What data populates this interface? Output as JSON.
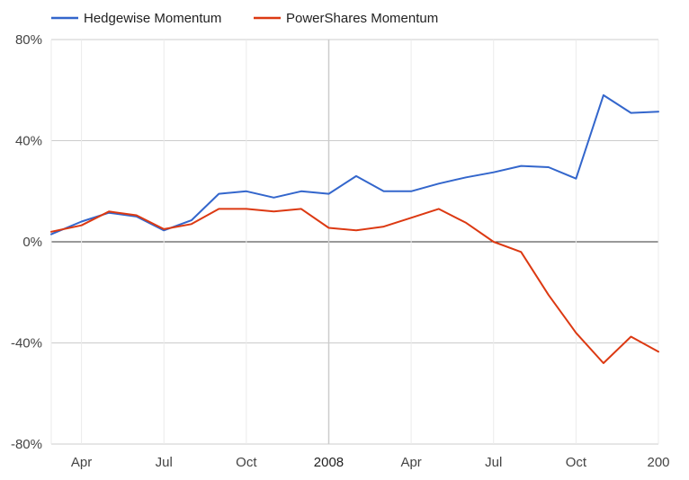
{
  "chart_data": {
    "type": "line",
    "x_ticks": [
      "Apr",
      "Jul",
      "Oct",
      "2008",
      "Apr",
      "Jul",
      "Oct",
      "200"
    ],
    "y_ticks": [
      "80%",
      "40%",
      "0%",
      "-40%",
      "-80%"
    ],
    "y_tick_values": [
      80,
      40,
      0,
      -40,
      -80
    ],
    "ylim": [
      -80,
      80
    ],
    "x_tick_positions": [
      2,
      5,
      8,
      11,
      14,
      17,
      20,
      23
    ],
    "xlim": [
      0.9,
      23
    ],
    "legend_position": "top-left",
    "grid": true,
    "series": [
      {
        "name": "Hedgewise Momentum",
        "color": "#3366cc",
        "x": [
          0.9,
          2,
          3,
          4,
          5,
          6,
          7,
          8,
          9,
          10,
          11,
          12,
          13,
          14,
          15,
          16,
          17,
          18,
          19,
          20,
          21,
          22,
          23
        ],
        "values": [
          3,
          8,
          11.5,
          10,
          4.5,
          8.5,
          19,
          20,
          17.5,
          20,
          19,
          26,
          20,
          20,
          23,
          25.5,
          27.5,
          30,
          29.5,
          25,
          58,
          51,
          51.5
        ]
      },
      {
        "name": "PowerShares Momentum",
        "color": "#dc3912",
        "x": [
          0.9,
          2,
          3,
          4,
          5,
          6,
          7,
          8,
          9,
          10,
          11,
          12,
          13,
          14,
          15,
          16,
          17,
          18,
          19,
          20,
          21,
          22,
          23
        ],
        "values": [
          4,
          6.5,
          12,
          10.5,
          5,
          7,
          13,
          13,
          12,
          13,
          5.5,
          4.5,
          6,
          9.5,
          13,
          7.5,
          0,
          -4,
          -21,
          -36,
          -48,
          -37.5,
          -43.5
        ]
      }
    ]
  }
}
